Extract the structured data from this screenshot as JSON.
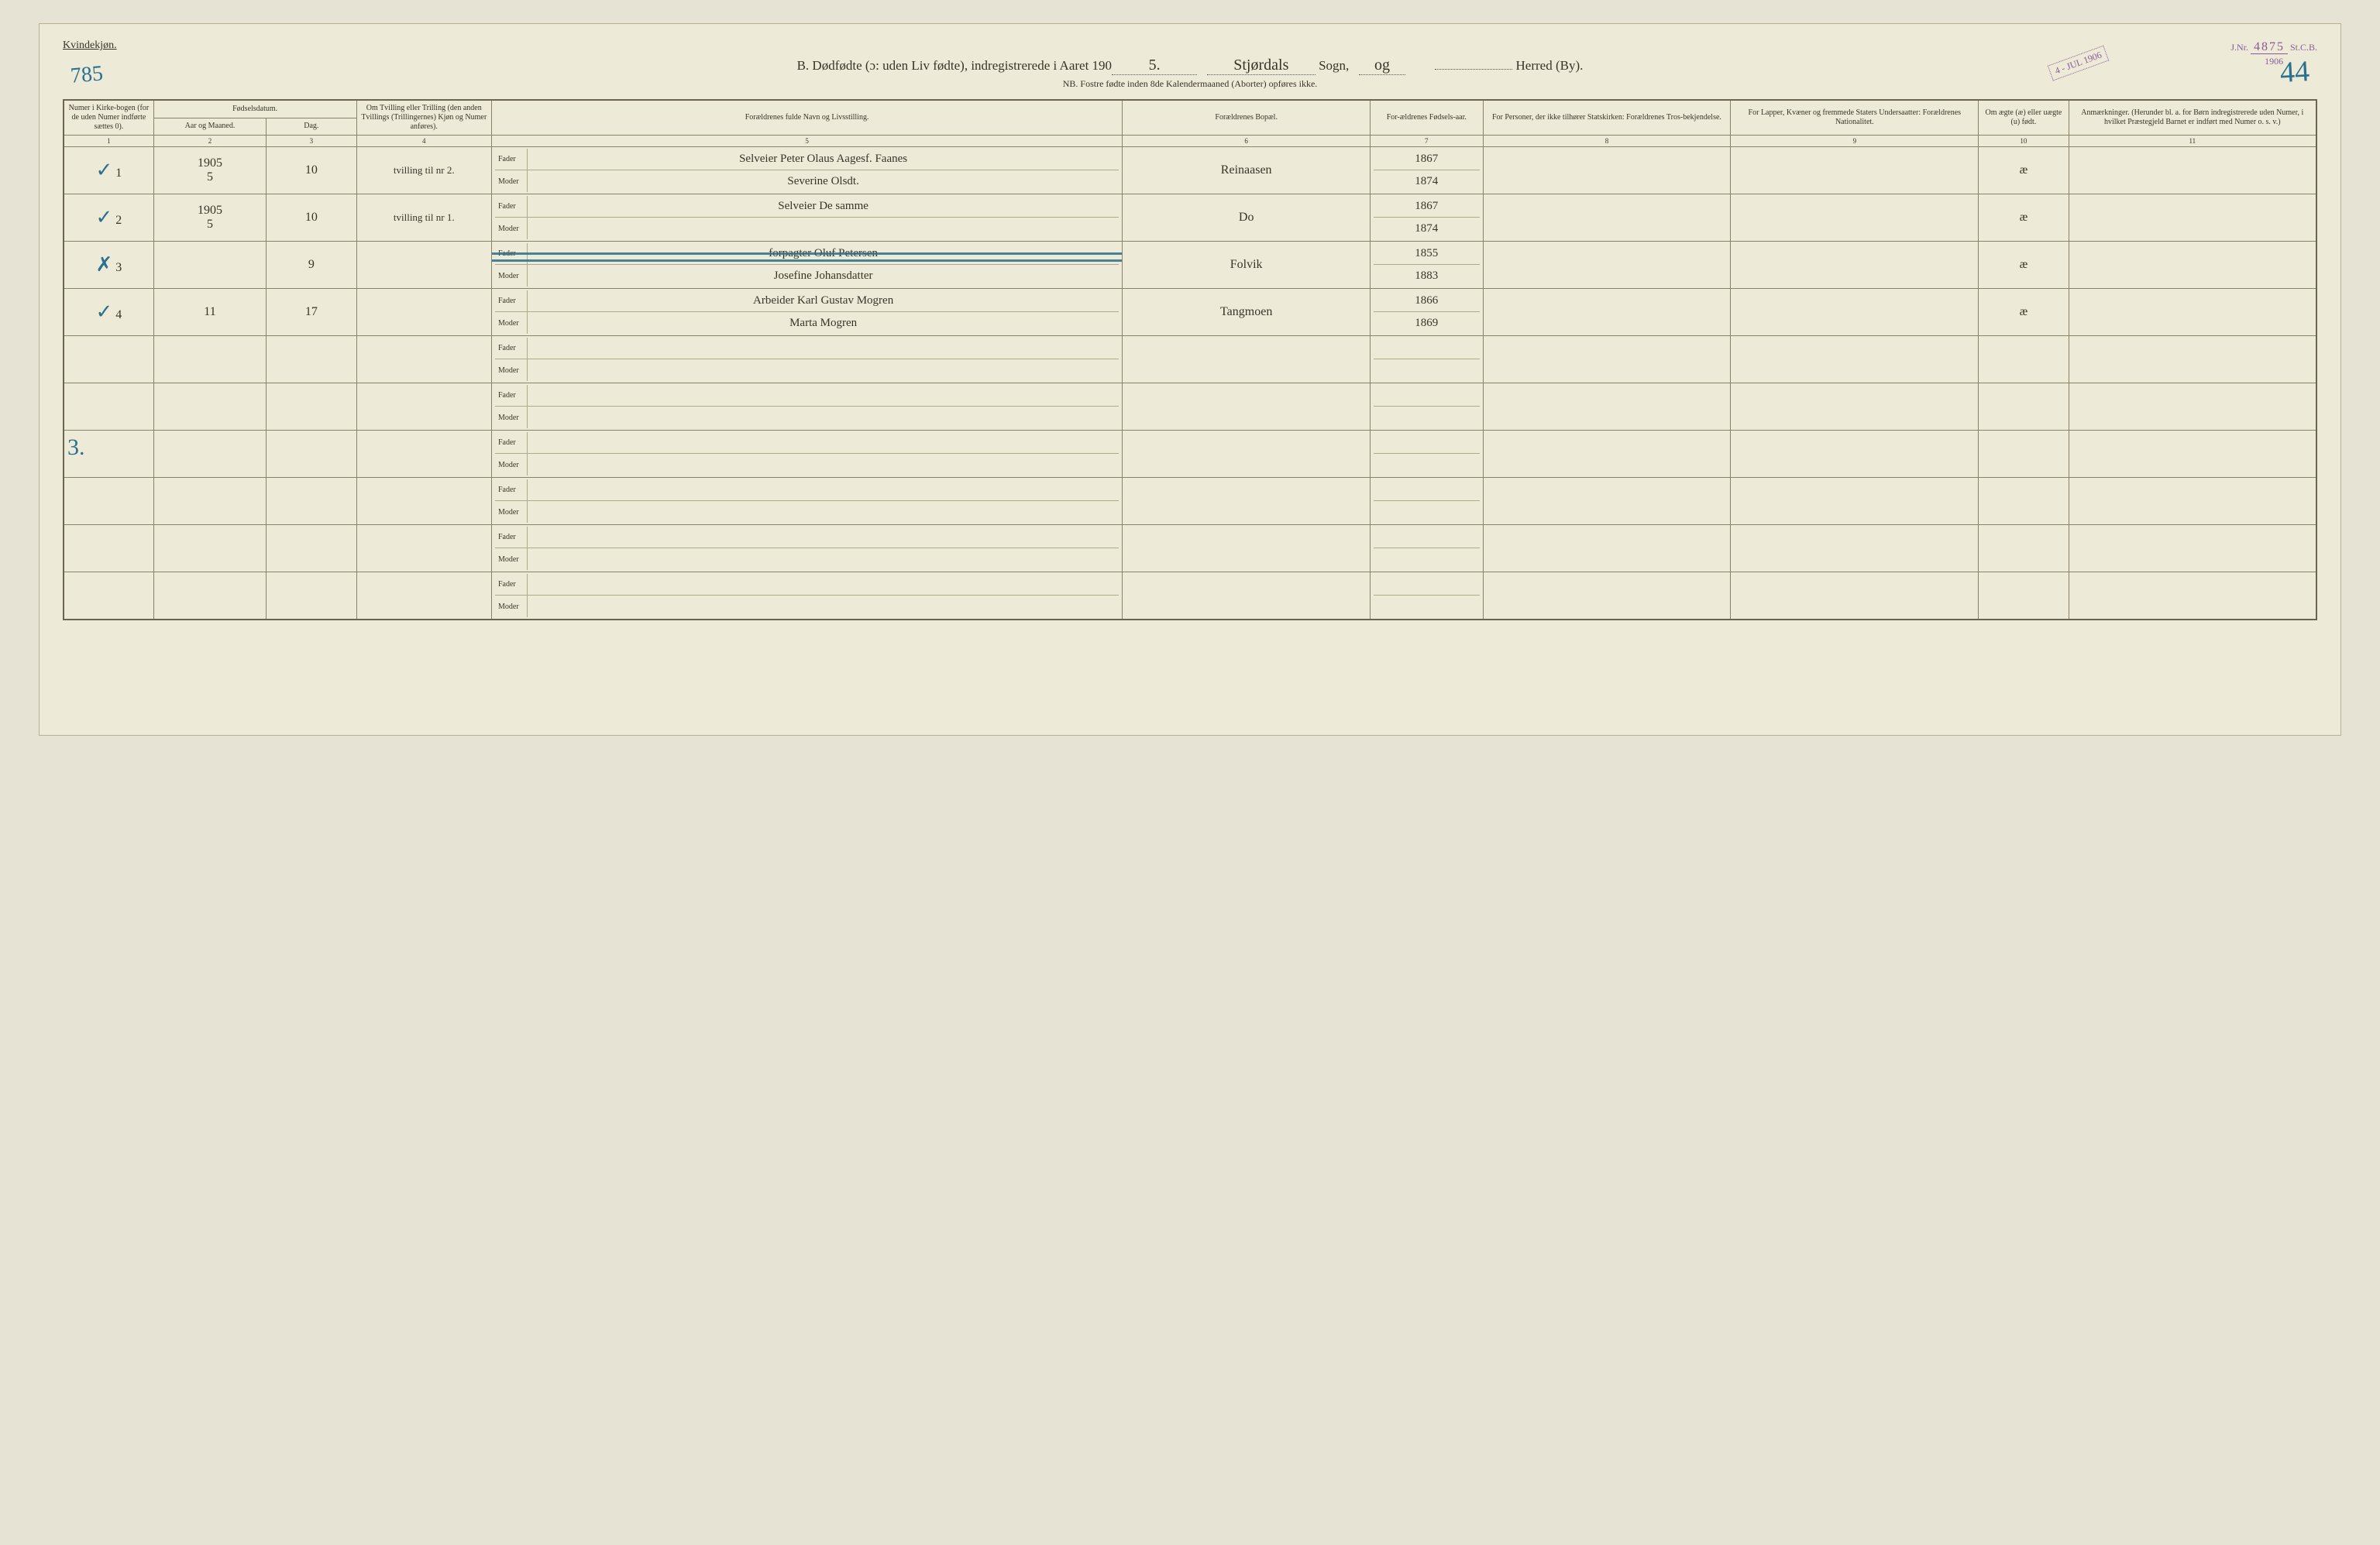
{
  "header": {
    "gender_label": "Kvindekjøn.",
    "corner_left": "785",
    "corner_right": "44",
    "stamp_date": "4 - JUL 1906",
    "stamp_jnr_prefix": "J.Nr.",
    "stamp_jnr_num": "4875",
    "stamp_jnr_suffix": "St.C.B.",
    "stamp_jnr_year": "1906",
    "title_prefix": "B.  Dødfødte (ɔ: uden Liv fødte), indregistrerede i Aaret 190",
    "title_year_digit": "5.",
    "parish": "Stjørdals",
    "parish_label": "Sogn,",
    "og": "og",
    "herred_label": "Herred (By).",
    "subtitle": "NB. Fostre fødte inden 8de Kalendermaaned (Aborter) opføres ikke."
  },
  "columns": {
    "c1": "Numer i Kirke-bogen (for de uden Numer indførte sættes 0).",
    "c2_top": "Fødselsdatum.",
    "c2a": "Aar og Maaned.",
    "c2b": "Dag.",
    "c4": "Om Tvilling eller Trilling (den anden Tvillings (Trillingernes) Kjøn og Numer anføres).",
    "c5": "Forældrenes fulde Navn og Livsstilling.",
    "c6": "Forældrenes Bopæl.",
    "c7": "For-ældrenes Fødsels-aar.",
    "c8": "For Personer, der ikke tilhører Statskirken: Forældrenes Tros-bekjendelse.",
    "c9": "For Lapper, Kvæner og fremmede Staters Undersaatter: Forældrenes Nationalitet.",
    "c10": "Om ægte (æ) eller uægte (u) født.",
    "c11": "Anmærkninger. (Herunder bl. a. for Børn indregistrerede uden Numer, i hvilket Præstegjeld Barnet er indført med Numer o. s. v.)"
  },
  "colnums": [
    "1",
    "2",
    "3",
    "4",
    "5",
    "6",
    "7",
    "8",
    "9",
    "10",
    "11"
  ],
  "labels": {
    "fader": "Fader",
    "moder": "Moder"
  },
  "rows": [
    {
      "check": "✓",
      "num": "1",
      "year_month": "1905\n5",
      "day": "10",
      "tvilling": "tvilling til nr 2.",
      "fader": "Selveier Peter Olaus Aagesf. Faanes",
      "moder": "Severine Olsdt.",
      "bopel": "Reinaasen",
      "far_aar": "1867",
      "mor_aar": "1874",
      "c8": "",
      "c9": "",
      "aegte": "æ",
      "anm": ""
    },
    {
      "check": "✓",
      "num": "2",
      "year_month": "1905\n5",
      "day": "10",
      "tvilling": "tvilling til nr 1.",
      "fader": "Selveier  De samme",
      "moder": "",
      "bopel": "Do",
      "far_aar": "1867",
      "mor_aar": "1874",
      "c8": "",
      "c9": "",
      "aegte": "æ",
      "anm": ""
    },
    {
      "check": "✗",
      "num": "3",
      "year_month": "",
      "day": "9",
      "tvilling": "",
      "fader": "forpagter Oluf Petersen",
      "moder": "Josefine Johansdatter",
      "bopel": "Folvik",
      "far_aar": "1855",
      "mor_aar": "1883",
      "c8": "",
      "c9": "",
      "aegte": "æ",
      "anm": "",
      "struck": true
    },
    {
      "check": "✓",
      "num": "4",
      "year_month": "11",
      "day": "17",
      "tvilling": "",
      "fader": "Arbeider Karl Gustav Mogren",
      "moder": "Marta Mogren",
      "bopel": "Tangmoen",
      "far_aar": "1866",
      "mor_aar": "1869",
      "c8": "",
      "c9": "",
      "aegte": "æ",
      "anm": ""
    }
  ],
  "empty_row_count": 6,
  "margin_note": "3.",
  "style": {
    "bg": "#edead7",
    "border": "#6b6450",
    "cell_border": "#8a8268",
    "ink": "#3a3428",
    "pencil_blue": "#2a7090",
    "stamp_purple": "#8a5a9c",
    "font_body": "Georgia, serif",
    "font_hand": "cursive",
    "header_fontsize": 17,
    "cell_fontsize": 11,
    "hand_fontsize": 15
  },
  "col_widths_pct": [
    4,
    5,
    4,
    6,
    28,
    11,
    5,
    11,
    11,
    4,
    11
  ]
}
